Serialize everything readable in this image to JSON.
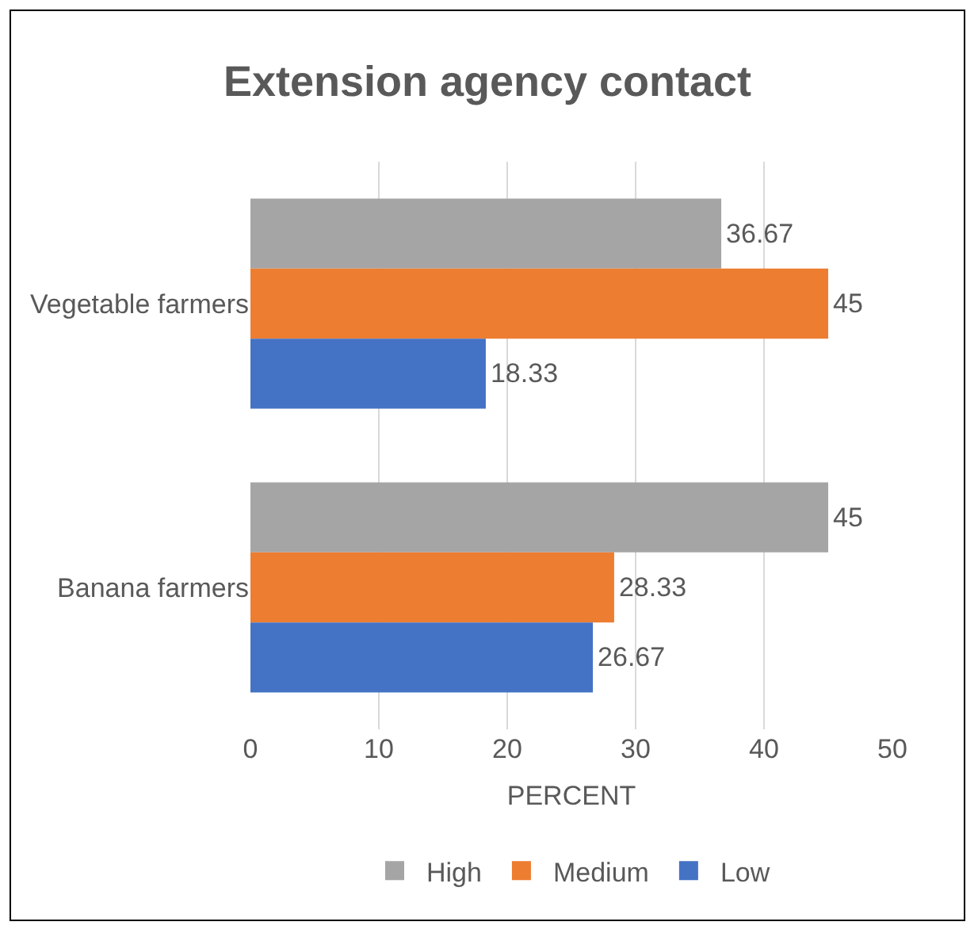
{
  "chart_data": {
    "type": "bar",
    "orientation": "horizontal",
    "title": "Extension agency contact",
    "xlabel": "PERCENT",
    "categories": [
      "Vegetable farmers",
      "Banana farmers"
    ],
    "series": [
      {
        "name": "High",
        "color": "#a5a5a5",
        "values": [
          36.67,
          45
        ]
      },
      {
        "name": "Medium",
        "color": "#ed7d31",
        "values": [
          45,
          28.33
        ]
      },
      {
        "name": "Low",
        "color": "#4472c4",
        "values": [
          18.33,
          26.67
        ]
      }
    ],
    "xlim": [
      0,
      50
    ],
    "xticks": [
      0,
      10,
      20,
      30,
      40,
      50
    ],
    "grid": "x",
    "legend": "bottom",
    "data_labels": true
  }
}
